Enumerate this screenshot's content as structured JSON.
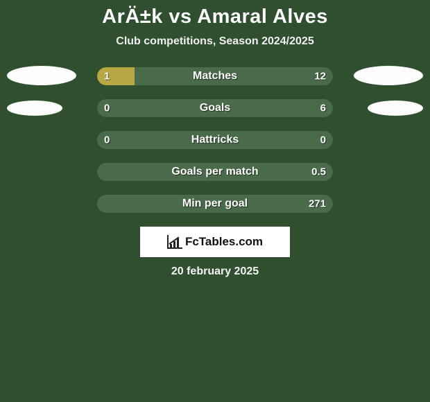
{
  "title": "ArÄ±k vs Amaral Alves",
  "subtitle": "Club competitions, Season 2024/2025",
  "date": "20 february 2025",
  "brand": "FcTables.com",
  "colors": {
    "background": "#2f4f2f",
    "bar_empty": "#4a6b4a",
    "bar_left_fill": "#b8a742",
    "bar_right_fill": "#b8a742",
    "oval": "#fdfdfd",
    "text": "#ffffff"
  },
  "oval_sizes": {
    "large_w": 100,
    "large_h": 28,
    "small_w": 80,
    "small_h": 22
  },
  "stats": [
    {
      "label": "Matches",
      "left_val": "1",
      "right_val": "12",
      "left_fill_pct": 16,
      "right_fill_pct": 0,
      "left_oval": "large",
      "right_oval": "large",
      "oval_top_offset": -2
    },
    {
      "label": "Goals",
      "left_val": "0",
      "right_val": "6",
      "left_fill_pct": 0,
      "right_fill_pct": 0,
      "left_oval": "small",
      "right_oval": "small",
      "oval_top_offset": 2
    },
    {
      "label": "Hattricks",
      "left_val": "0",
      "right_val": "0",
      "left_fill_pct": 0,
      "right_fill_pct": 0,
      "left_oval": null,
      "right_oval": null,
      "oval_top_offset": 0
    },
    {
      "label": "Goals per match",
      "left_val": "",
      "right_val": "0.5",
      "left_fill_pct": 0,
      "right_fill_pct": 0,
      "left_oval": null,
      "right_oval": null,
      "oval_top_offset": 0
    },
    {
      "label": "Min per goal",
      "left_val": "",
      "right_val": "271",
      "left_fill_pct": 0,
      "right_fill_pct": 0,
      "left_oval": null,
      "right_oval": null,
      "oval_top_offset": 0
    }
  ]
}
